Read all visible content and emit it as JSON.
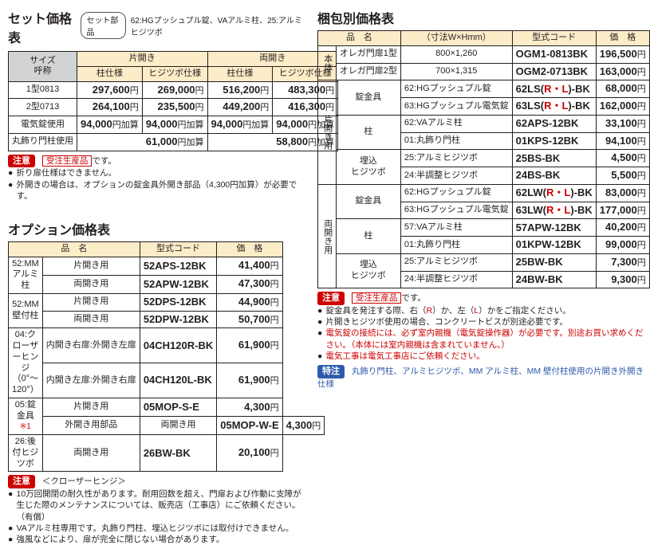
{
  "left": {
    "set": {
      "title": "セット価格表",
      "parts_pill": "セット部品",
      "parts_text": "62:HGプッシュプル錠、VAアルミ柱、25:アルミヒジツボ",
      "hdr_size": "サイズ\n呼称",
      "hdr_single": "片開き",
      "hdr_double": "両開き",
      "hdr_post": "柱仕様",
      "hdr_hinge": "ヒジツボ仕様",
      "rows": [
        {
          "label": "1型0813",
          "p1": "297,600",
          "p2": "269,000",
          "p3": "516,200",
          "p4": "483,300"
        },
        {
          "label": "2型0713",
          "p1": "264,100",
          "p2": "235,500",
          "p3": "449,200",
          "p4": "416,300"
        }
      ],
      "elec_label": "電気錠使用",
      "elec_v": "94,000",
      "elec_suffix": "円加算",
      "deco_label": "丸飾り門柱使用",
      "deco_v1": "61,000",
      "deco_v2": "58,800",
      "notice": {
        "chip": "注意",
        "boxed": "受注生産品",
        "boxed_tail": "です。",
        "bullets": [
          "折り扉仕様はできません。",
          "外開きの場合は、オプションの錠金具外開き部品（4,300円加算）が必要です。"
        ]
      }
    },
    "option": {
      "title": "オプション価格表",
      "hdr_name": "品　名",
      "hdr_code": "型式コード",
      "hdr_price": "価　格",
      "rows": [
        {
          "g": "52:MMアルミ柱",
          "gr": 2,
          "sub": "片開き用",
          "code": "52APS-12BK",
          "price": "41,400"
        },
        {
          "sub": "両開き用",
          "code": "52APW-12BK",
          "price": "47,300"
        },
        {
          "g": "52:MM壁付柱",
          "gr": 2,
          "sub": "片開き用",
          "code": "52DPS-12BK",
          "price": "44,900"
        },
        {
          "sub": "両開き用",
          "code": "52DPW-12BK",
          "price": "50,700"
        },
        {
          "g": "04:クローザーヒンジ\n（0°～120°）",
          "gr": 2,
          "sub": "内開き右扉:外開き左扉",
          "code": "04CH120R-BK",
          "price": "61,900"
        },
        {
          "sub": "内開き左扉:外開き右扉",
          "code": "04CH120L-BK",
          "price": "61,900"
        },
        {
          "g": "05:錠金具",
          "gtail": "※1",
          "gr": 2,
          "sub": "片開き用",
          "code": "05MOP-S-E",
          "price": "4,300"
        },
        {
          "sub2": "外開き用部品",
          "sub": "両開き用",
          "code": "05MOP-W-E",
          "price": "4,300"
        },
        {
          "g": "26:後付ヒジツボ",
          "gr": 1,
          "sub": "両開き用",
          "code": "26BW-BK",
          "price": "20,100"
        }
      ],
      "notice": {
        "chip": "注意",
        "heading": "＜クローザーヒンジ＞",
        "bullets": [
          "10万回開閉の耐久性があります。耐用回数を超え、門扉および作動に支障が生じた際のメンテナンスについては、販売店（工事店）にご依頼ください。（有償）",
          "VAアルミ柱専用です。丸飾り門柱、埋込ヒジツボには取付けできません。",
          "強風などにより、扉が完全に閉じない場合があります。"
        ]
      }
    }
  },
  "right": {
    "title": "梱包別価格表",
    "hdr_name": "品　名",
    "hdr_dim": "（寸法W×Hmm）",
    "hdr_code": "型式コード",
    "hdr_price": "価　格",
    "body_label": "本体",
    "body": [
      {
        "n": "オレガ門扉1型",
        "d": "800×1,260",
        "c": "OGM1-0813BK",
        "p": "196,500"
      },
      {
        "n": "オレガ門扉2型",
        "d": "700×1,315",
        "c": "OGM2-0713BK",
        "p": "163,000"
      }
    ],
    "single_label": "片開き用",
    "double_label": "両開き用",
    "groups_single": [
      {
        "g": "錠金具",
        "items": [
          {
            "n": "62:HGプッシュプル錠",
            "c": "62LS(",
            "rl": "R・L",
            "c2": ")-BK",
            "p": "68,000"
          },
          {
            "n": "63:HGプッシュプル電気錠",
            "c": "63LS(",
            "rl": "R・L",
            "c2": ")-BK",
            "p": "162,000"
          }
        ]
      },
      {
        "g": "柱",
        "items": [
          {
            "n": "62:VAアルミ柱",
            "c": "62APS-12BK",
            "p": "33,100"
          },
          {
            "n": "01:丸飾り門柱",
            "c": "01KPS-12BK",
            "p": "94,100"
          }
        ]
      },
      {
        "g": "埋込\nヒジツボ",
        "items": [
          {
            "n": "25:アルミヒジツボ",
            "c": "25BS-BK",
            "p": "4,500"
          },
          {
            "n": "24:半調整ヒジツボ",
            "c": "24BS-BK",
            "p": "5,500"
          }
        ]
      }
    ],
    "groups_double": [
      {
        "g": "錠金具",
        "items": [
          {
            "n": "62:HGプッシュプル錠",
            "c": "62LW(",
            "rl": "R・L",
            "c2": ")-BK",
            "p": "83,000"
          },
          {
            "n": "63:HGプッシュプル電気錠",
            "c": "63LW(",
            "rl": "R・L",
            "c2": ")-BK",
            "p": "177,000"
          }
        ]
      },
      {
        "g": "柱",
        "items": [
          {
            "n": "57:VAアルミ柱",
            "c": "57APW-12BK",
            "p": "40,200"
          },
          {
            "n": "01:丸飾り門柱",
            "c": "01KPW-12BK",
            "p": "99,000"
          }
        ]
      },
      {
        "g": "埋込\nヒジツボ",
        "items": [
          {
            "n": "25:アルミヒジツボ",
            "c": "25BW-BK",
            "p": "7,300"
          },
          {
            "n": "24:半調整ヒジツボ",
            "c": "24BW-BK",
            "p": "9,300"
          }
        ]
      }
    ],
    "notice": {
      "chip": "注意",
      "boxed": "受注生産品",
      "boxed_tail": "です。",
      "bullets": [
        "錠金具を発注する際、右（<span class='red'>R</span>）か、左（<span class='red'>L</span>）かをご指定ください。",
        "片開きヒジツボ使用の場合、コンクリートビスが別途必要です。",
        "<span class='red'>電気錠の接続には、必ず室内親機（電気錠操作器）が必要です。別途お買い求めください。（本体には室内親機は含まれていません。）</span>",
        "<span class='red'>電気工事は電気工事店にご依頼ください。</span>"
      ],
      "chip2": "特注",
      "special": "丸飾り門柱、アルミヒジツボ、MM アルミ柱、MM 壁付柱使用の片開き外開き仕様"
    }
  },
  "yen": "円"
}
